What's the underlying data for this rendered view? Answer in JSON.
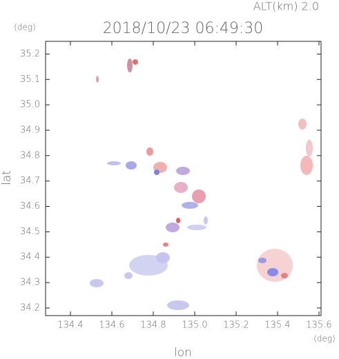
{
  "chart_data": {
    "type": "map",
    "title": "2018/10/23 06:49:30",
    "subtitle": "ALT(km) 2.0",
    "x_label": "lon",
    "y_label": "lat",
    "x_unit": "(deg)",
    "y_unit": "(deg)",
    "xlim": [
      134.28,
      135.61
    ],
    "ylim": [
      34.17,
      35.25
    ],
    "xticks": [
      134.4,
      134.6,
      134.8,
      {
        "value": 135.0,
        "label": "135.0"
      },
      135.2,
      135.4,
      135.6
    ],
    "yticks": [
      34.2,
      34.3,
      34.4,
      34.5,
      34.6,
      34.7,
      34.8,
      34.9,
      {
        "value": 35.0,
        "label": "35.0"
      },
      35.1,
      35.2
    ]
  }
}
